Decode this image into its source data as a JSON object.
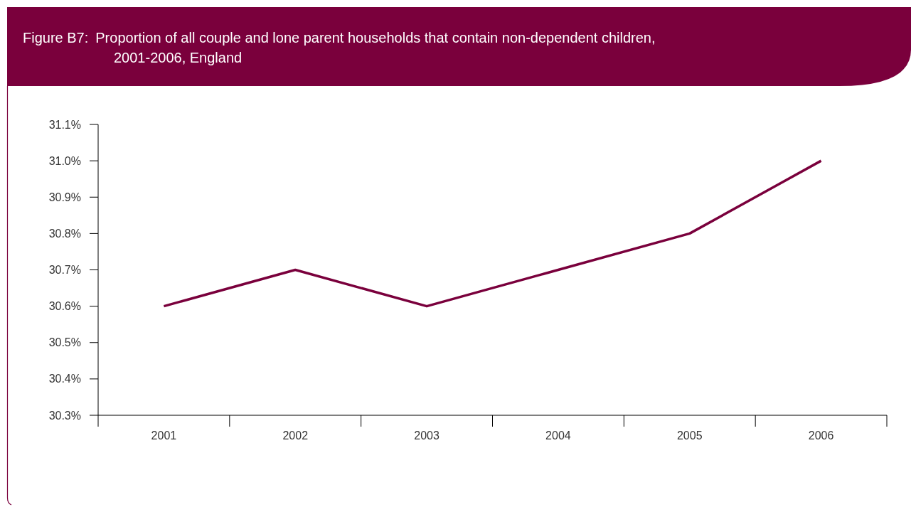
{
  "chart_data": {
    "type": "line",
    "title": "Figure B7:  Proportion of all couple and lone parent households that contain non-dependent children, 2001-2006, England",
    "categories": [
      "2001",
      "2002",
      "2003",
      "2004",
      "2005",
      "2006"
    ],
    "series": [
      {
        "color": "#7a003c",
        "values": [
          30.6,
          30.7,
          30.6,
          30.7,
          30.8,
          31.0
        ]
      }
    ],
    "ylim": [
      30.3,
      31.1
    ],
    "yticks": [
      {
        "value": 30.3,
        "label": "30.3%"
      },
      {
        "value": 30.4,
        "label": "30.4%"
      },
      {
        "value": 30.5,
        "label": "30.5%"
      },
      {
        "value": 30.6,
        "label": "30.6%"
      },
      {
        "value": 30.7,
        "label": "30.7%"
      },
      {
        "value": 30.8,
        "label": "30.8%"
      },
      {
        "value": 30.9,
        "label": "30.9%"
      },
      {
        "value": 31.0,
        "label": "31.0%"
      },
      {
        "value": 31.1,
        "label": "31.1%"
      }
    ],
    "marker": "none",
    "line_style": "solid"
  }
}
